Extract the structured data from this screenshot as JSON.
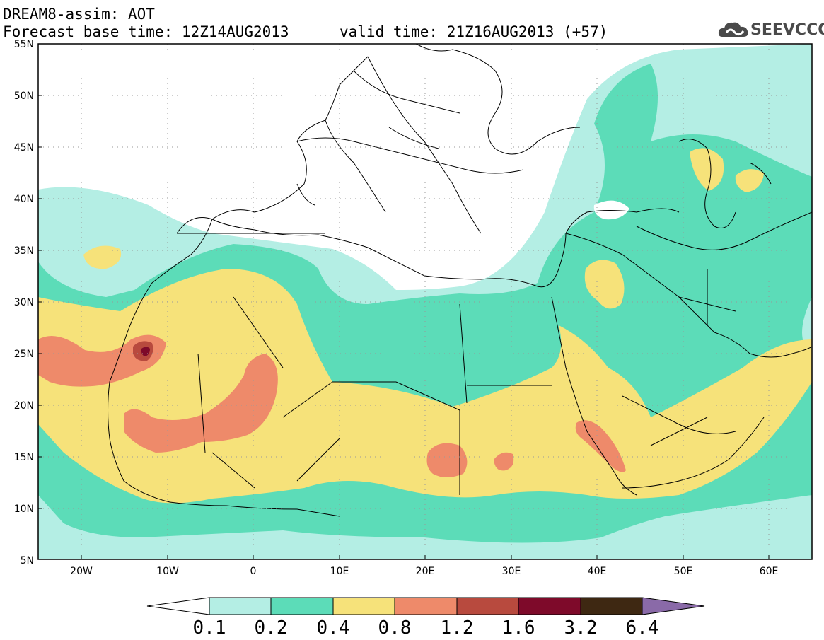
{
  "header": {
    "line1": "DREAM8-assim: AOT",
    "base_time": "Forecast base time: 12Z14AUG2013",
    "valid_time": "valid time: 21Z16AUG2013 (+57)"
  },
  "logo": {
    "text": "SEEVCCC",
    "icon": "cloud-icon"
  },
  "map": {
    "lat_labels": [
      "55N",
      "50N",
      "45N",
      "40N",
      "35N",
      "30N",
      "25N",
      "20N",
      "15N",
      "10N",
      "5N"
    ],
    "lon_labels": [
      "20W",
      "10W",
      "0",
      "10E",
      "20E",
      "30E",
      "40E",
      "50E",
      "60E"
    ],
    "lon_range": [
      -25,
      65
    ],
    "lat_range": [
      5,
      55
    ],
    "grid": "dotted"
  },
  "colorbar": {
    "labels": [
      "0.1",
      "0.2",
      "0.4",
      "0.8",
      "1.2",
      "1.6",
      "3.2",
      "6.4"
    ],
    "colors": [
      "#ffffff",
      "#b4eee4",
      "#5cdcb8",
      "#f6e27a",
      "#ee8a6a",
      "#b84a3e",
      "#7e0a2a",
      "#3e2812",
      "#8a6aa8"
    ]
  }
}
